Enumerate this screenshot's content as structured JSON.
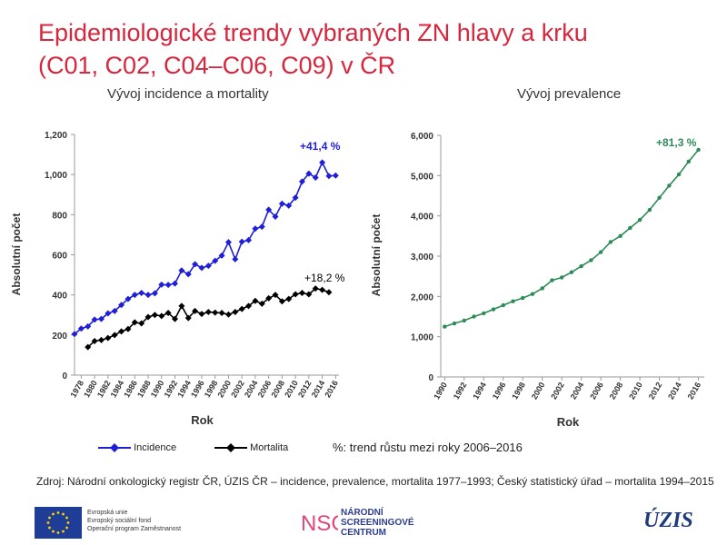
{
  "title_line1": "Epidemiologické trendy vybraných ZN hlavy a krku",
  "title_line2": "(C01, C02, C04–C06, C09) v ČR",
  "note": "%: trend růstu mezi roky 2006–2016",
  "source": "Zdroj: Národní onkologický registr ČR, ÚZIS ČR – incidence, prevalence, mortalita 1977–1993; Český statistický úřad – mortalita 1994–2015",
  "footer": {
    "eu_lines": [
      "Evropská unie",
      "Evropský sociální fond",
      "Operační program Zaměstnanost"
    ],
    "nsc_mark": "NSC",
    "nsc_lines": [
      "NÁRODNÍ",
      "SCREENINGOVÉ",
      "CENTRUM"
    ],
    "uzis": "ÚZIS"
  },
  "colors": {
    "title": "#d7263d",
    "incidence": "#1f1fd6",
    "mortality": "#000000",
    "prevalence": "#2e8b57"
  },
  "chart_data": [
    {
      "type": "line",
      "title": "Vývoj incidence a mortality",
      "xlabel": "Rok",
      "ylabel": "Absolutní počet",
      "ylim": [
        0,
        1200
      ],
      "yticks": [
        "0",
        "200",
        "400",
        "600",
        "800",
        "1,000",
        "1,200"
      ],
      "xticks": [
        "1978",
        "1980",
        "1982",
        "1984",
        "1986",
        "1988",
        "1990",
        "1992",
        "1994",
        "1996",
        "1998",
        "2000",
        "2002",
        "2004",
        "2006",
        "2008",
        "2010",
        "2012",
        "2014",
        "2016"
      ],
      "grid": false,
      "series": [
        {
          "name": "Incidence",
          "marker": "diamond",
          "x": [
            1977,
            1978,
            1979,
            1980,
            1981,
            1982,
            1983,
            1984,
            1985,
            1986,
            1987,
            1988,
            1989,
            1990,
            1991,
            1992,
            1993,
            1994,
            1995,
            1996,
            1997,
            1998,
            1999,
            2000,
            2001,
            2002,
            2003,
            2004,
            2005,
            2006,
            2007,
            2008,
            2009,
            2010,
            2011,
            2012,
            2013,
            2014,
            2015,
            2016
          ],
          "values": [
            205,
            232,
            243,
            277,
            280,
            308,
            320,
            350,
            380,
            400,
            410,
            400,
            408,
            451,
            450,
            457,
            522,
            503,
            553,
            535,
            545,
            570,
            596,
            663,
            578,
            665,
            673,
            730,
            740,
            825,
            790,
            855,
            845,
            885,
            965,
            1005,
            985,
            1060,
            993,
            995
          ],
          "annotation": "+41,4 %"
        },
        {
          "name": "Mortalita",
          "marker": "diamond",
          "x": [
            1979,
            1980,
            1981,
            1982,
            1983,
            1984,
            1985,
            1986,
            1987,
            1988,
            1989,
            1990,
            1991,
            1992,
            1993,
            1994,
            1995,
            1996,
            1997,
            1998,
            1999,
            2000,
            2001,
            2002,
            2003,
            2004,
            2005,
            2006,
            2007,
            2008,
            2009,
            2010,
            2011,
            2012,
            2013,
            2014,
            2015
          ],
          "values": [
            140,
            170,
            175,
            185,
            200,
            218,
            230,
            263,
            258,
            290,
            300,
            295,
            310,
            280,
            345,
            285,
            320,
            305,
            315,
            312,
            310,
            302,
            315,
            330,
            345,
            370,
            356,
            383,
            400,
            368,
            380,
            403,
            410,
            403,
            432,
            425,
            413
          ],
          "annotation": "+18,2 %"
        }
      ],
      "legend": "bottom"
    },
    {
      "type": "line",
      "title": "Vývoj prevalence",
      "xlabel": "Rok",
      "ylabel": "Absolutní počet",
      "ylim": [
        0,
        6000
      ],
      "yticks": [
        "0",
        "1,000",
        "2,000",
        "3,000",
        "4,000",
        "5,000",
        "6,000"
      ],
      "xticks": [
        "1990",
        "1992",
        "1994",
        "1996",
        "1998",
        "2000",
        "2002",
        "2004",
        "2006",
        "2008",
        "2010",
        "2012",
        "2014",
        "2016"
      ],
      "grid": false,
      "series": [
        {
          "name": "Prevalence",
          "marker": "circle",
          "x": [
            1990,
            1991,
            1992,
            1993,
            1994,
            1995,
            1996,
            1997,
            1998,
            1999,
            2000,
            2001,
            2002,
            2003,
            2004,
            2005,
            2006,
            2007,
            2008,
            2009,
            2010,
            2011,
            2012,
            2013,
            2014,
            2015,
            2016
          ],
          "values": [
            1250,
            1330,
            1400,
            1500,
            1580,
            1680,
            1780,
            1880,
            1960,
            2060,
            2200,
            2400,
            2470,
            2600,
            2750,
            2900,
            3100,
            3350,
            3500,
            3700,
            3900,
            4150,
            4450,
            4750,
            5030,
            5350,
            5640
          ],
          "annotation": "+81,3 %"
        }
      ]
    }
  ]
}
